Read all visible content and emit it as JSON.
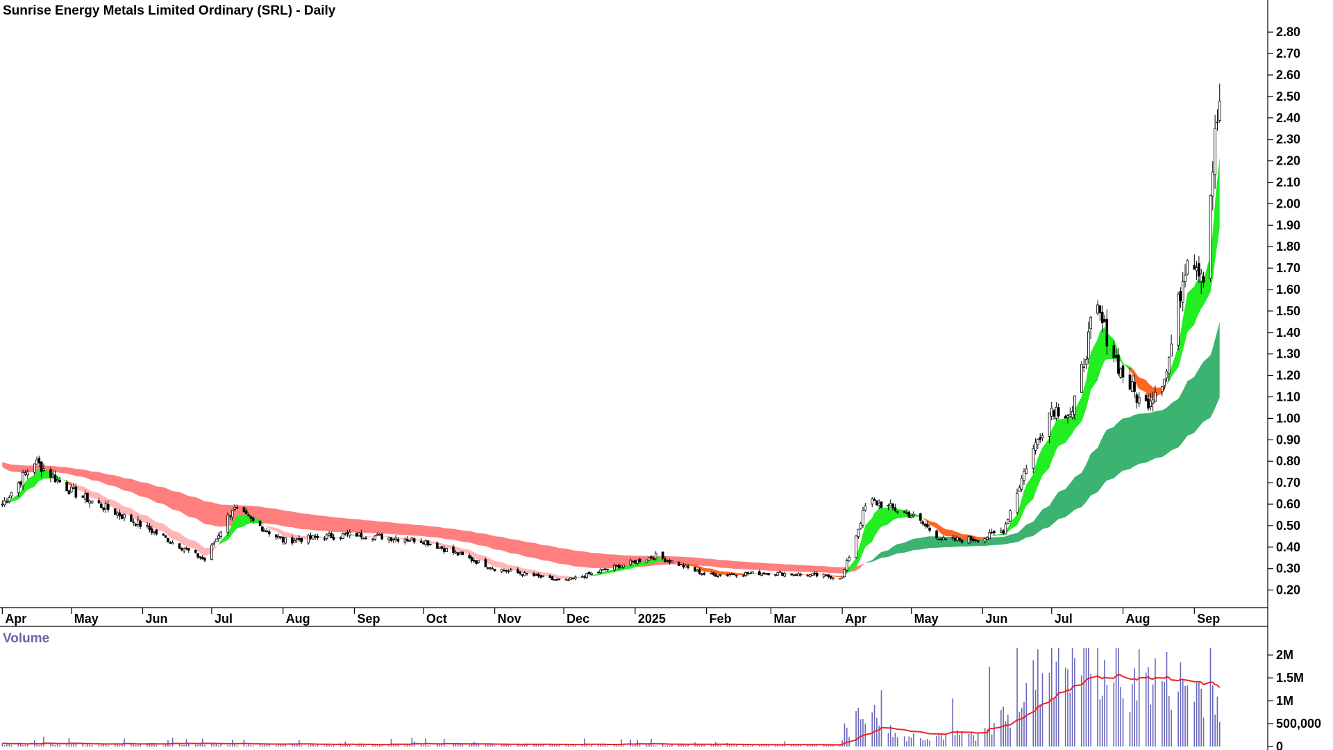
{
  "chart_data": [
    {
      "type": "candlestick",
      "title": "Sunrise Energy Metals Limited Ordinary (SRL) - Daily",
      "x_ticks": [
        "Apr",
        "May",
        "Jun",
        "Jul",
        "Aug",
        "Sep",
        "Oct",
        "Nov",
        "Dec",
        "2025",
        "Feb",
        "Mar",
        "Apr",
        "May",
        "Jun",
        "Jul",
        "Aug",
        "Sep"
      ],
      "y_ticks": [
        "0.20",
        "0.30",
        "0.40",
        "0.50",
        "0.60",
        "0.70",
        "0.80",
        "0.90",
        "1.00",
        "1.10",
        "1.20",
        "1.30",
        "1.40",
        "1.50",
        "1.60",
        "1.70",
        "1.80",
        "1.90",
        "2.00",
        "2.10",
        "2.20",
        "2.30",
        "2.40",
        "2.50",
        "2.60",
        "2.70",
        "2.80"
      ],
      "ylim": [
        0.16,
        2.82
      ],
      "grid": false,
      "colors": {
        "long_band_down": "#ff7f7f",
        "long_band_up": "#3cb371",
        "short_band_down_light": "#ffb6b6",
        "short_band_down": "#ff6622",
        "short_band_up": "#22ee22",
        "candle_outline": "#000000"
      },
      "price_anchors": [
        {
          "date": "2024-04-01",
          "close": 0.6
        },
        {
          "date": "2024-04-15",
          "close": 0.8
        },
        {
          "date": "2024-05-01",
          "close": 0.66
        },
        {
          "date": "2024-06-01",
          "close": 0.5
        },
        {
          "date": "2024-06-28",
          "close": 0.34
        },
        {
          "date": "2024-07-10",
          "close": 0.58
        },
        {
          "date": "2024-08-01",
          "close": 0.43
        },
        {
          "date": "2024-09-01",
          "close": 0.46
        },
        {
          "date": "2024-10-01",
          "close": 0.43
        },
        {
          "date": "2024-11-01",
          "close": 0.3
        },
        {
          "date": "2024-12-01",
          "close": 0.24
        },
        {
          "date": "2025-01-10",
          "close": 0.36
        },
        {
          "date": "2025-02-01",
          "close": 0.27
        },
        {
          "date": "2025-03-01",
          "close": 0.28
        },
        {
          "date": "2025-04-01",
          "close": 0.26
        },
        {
          "date": "2025-04-12",
          "close": 0.62
        },
        {
          "date": "2025-05-01",
          "close": 0.55
        },
        {
          "date": "2025-05-15",
          "close": 0.43
        },
        {
          "date": "2025-06-01",
          "close": 0.44
        },
        {
          "date": "2025-06-10",
          "close": 0.48
        },
        {
          "date": "2025-06-20",
          "close": 0.78
        },
        {
          "date": "2025-07-01",
          "close": 1.05
        },
        {
          "date": "2025-07-10",
          "close": 1.02
        },
        {
          "date": "2025-07-20",
          "close": 1.52
        },
        {
          "date": "2025-07-31",
          "close": 1.22
        },
        {
          "date": "2025-08-10",
          "close": 1.05
        },
        {
          "date": "2025-08-20",
          "close": 1.22
        },
        {
          "date": "2025-08-29",
          "close": 1.78
        },
        {
          "date": "2025-09-05",
          "close": 1.68
        },
        {
          "date": "2025-09-10",
          "close": 2.3
        },
        {
          "date": "2025-09-14",
          "close": 2.65
        }
      ]
    },
    {
      "type": "bar",
      "title": "Volume",
      "y_ticks": [
        "0",
        "500,000",
        "1M",
        "1.5M",
        "2M"
      ],
      "ylim": [
        0,
        2200000
      ],
      "colors": {
        "bars": "#6666bb",
        "average_line": "#ee2222",
        "title": "#6666aa"
      },
      "volume_anchors": [
        {
          "date": "2024-04-01",
          "volume": 60000
        },
        {
          "date": "2025-03-31",
          "volume": 40000
        },
        {
          "date": "2025-04-10",
          "volume": 1000000
        },
        {
          "date": "2025-04-25",
          "volume": 250000
        },
        {
          "date": "2025-06-01",
          "volume": 300000
        },
        {
          "date": "2025-07-03",
          "volume": 2150000
        },
        {
          "date": "2025-08-20",
          "volume": 1650000
        },
        {
          "date": "2025-09-14",
          "volume": 1250000
        }
      ]
    }
  ]
}
